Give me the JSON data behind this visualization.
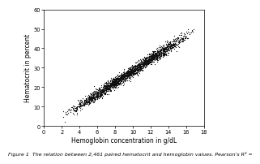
{
  "title": "",
  "xlabel": "Hemoglobin concentration in g/dL",
  "ylabel": "Hematocrit in percent",
  "caption": "Figure 1  The relation between 2,461 paired hematocrit and hemoglobin values. Pearson's R² =",
  "xlim": [
    0,
    18
  ],
  "ylim": [
    0,
    60
  ],
  "xticks": [
    0,
    2,
    4,
    6,
    8,
    10,
    12,
    14,
    16,
    18
  ],
  "yticks": [
    0,
    10,
    20,
    30,
    40,
    50,
    60
  ],
  "n_points": 2461,
  "hb_min": 2.0,
  "hb_max": 17.0,
  "slope": 3.0,
  "intercept": -1.5,
  "scatter_color": "#111111",
  "bg_color": "#ffffff",
  "plot_bg_color": "#ffffff",
  "marker_size": 0.8,
  "seed": 42,
  "noise_std": 1.4,
  "caption_fontsize": 4.5,
  "axis_label_fontsize": 5.5,
  "tick_fontsize": 4.8
}
